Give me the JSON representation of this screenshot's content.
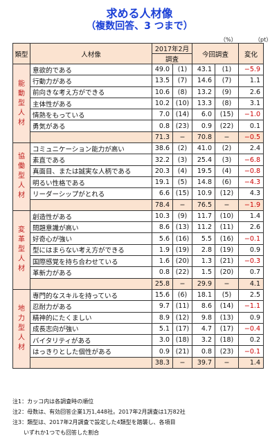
{
  "title": "求める人材像",
  "subtitle": "（複数回答、3 つまで）",
  "units": {
    "pct": "（%）",
    "pt": "（pt）"
  },
  "headers": {
    "type": "類型",
    "item": "人材像",
    "y2017_line1": "2017年2月",
    "y2017_line2": "調査",
    "current": "今回調査",
    "change": "変化"
  },
  "groups": [
    {
      "type": "能動型人材",
      "rows": [
        {
          "label": "意欲的である",
          "v17": "49.0",
          "r17": "(1)",
          "vn": "43.1",
          "rn": "(1)",
          "chg": "−5.9"
        },
        {
          "label": "行動力がある",
          "v17": "13.5",
          "r17": "(7)",
          "vn": "14.6",
          "rn": "(7)",
          "chg": "1.1"
        },
        {
          "label": "前向きな考え方ができる",
          "v17": "10.6",
          "r17": "(8)",
          "vn": "13.2",
          "rn": "(9)",
          "chg": "2.6"
        },
        {
          "label": "主体性がある",
          "v17": "10.2",
          "r17": "(10)",
          "vn": "13.3",
          "rn": "(8)",
          "chg": "3.1"
        },
        {
          "label": "情熱をもっている",
          "v17": "7.0",
          "r17": "(14)",
          "vn": "6.0",
          "rn": "(15)",
          "chg": "−1.0"
        },
        {
          "label": "勇気がある",
          "v17": "0.8",
          "r17": "(23)",
          "vn": "0.9",
          "rn": "(22)",
          "chg": "0.1"
        }
      ],
      "sub": {
        "v17": "71.3",
        "sep": "−",
        "vn": "70.8",
        "sep2": "−",
        "chg": "−0.5"
      }
    },
    {
      "type": "協働型人材",
      "rows": [
        {
          "label": "コミュニケーション能力が高い",
          "v17": "38.6",
          "r17": "(2)",
          "vn": "41.0",
          "rn": "(2)",
          "chg": "2.4"
        },
        {
          "label": "素直である",
          "v17": "32.2",
          "r17": "(3)",
          "vn": "25.4",
          "rn": "(3)",
          "chg": "−6.8"
        },
        {
          "label": "真面目、または誠実な人柄である",
          "v17": "20.3",
          "r17": "(4)",
          "vn": "19.5",
          "rn": "(4)",
          "chg": "−0.8"
        },
        {
          "label": "明るい性格である",
          "v17": "19.1",
          "r17": "(5)",
          "vn": "14.8",
          "rn": "(6)",
          "chg": "−4.3"
        },
        {
          "label": "リーダーシップがとれる",
          "v17": "6.6",
          "r17": "(15)",
          "vn": "10.9",
          "rn": "(12)",
          "chg": "4.3"
        }
      ],
      "sub": {
        "v17": "78.4",
        "sep": "−",
        "vn": "76.5",
        "sep2": "−",
        "chg": "−1.9"
      }
    },
    {
      "type": "変革型人材",
      "rows": [
        {
          "label": "創造性がある",
          "v17": "10.3",
          "r17": "(9)",
          "vn": "11.7",
          "rn": "(10)",
          "chg": "1.4"
        },
        {
          "label": "問題意識が高い",
          "v17": "8.6",
          "r17": "(13)",
          "vn": "11.2",
          "rn": "(11)",
          "chg": "2.6"
        },
        {
          "label": "好奇心が強い",
          "v17": "5.6",
          "r17": "(16)",
          "vn": "5.5",
          "rn": "(16)",
          "chg": "−0.1"
        },
        {
          "label": "型にはまらない考え方ができる",
          "v17": "1.9",
          "r17": "(19)",
          "vn": "2.8",
          "rn": "(19)",
          "chg": "0.9"
        },
        {
          "label": "国際感覚を持ち合わせている",
          "v17": "1.6",
          "r17": "(20)",
          "vn": "1.3",
          "rn": "(21)",
          "chg": "−0.3"
        },
        {
          "label": "革新力がある",
          "v17": "0.8",
          "r17": "(22)",
          "vn": "1.5",
          "rn": "(20)",
          "chg": "0.7"
        }
      ],
      "sub": {
        "v17": "25.8",
        "sep": "−",
        "vn": "29.9",
        "sep2": "−",
        "chg": "4.1"
      }
    },
    {
      "type": "地力型人材",
      "rows": [
        {
          "label": "専門的なスキルを持っている",
          "v17": "15.6",
          "r17": "(6)",
          "vn": "18.1",
          "rn": "(5)",
          "chg": "2.5"
        },
        {
          "label": "忍耐力がある",
          "v17": "9.7",
          "r17": "(11)",
          "vn": "8.6",
          "rn": "(14)",
          "chg": "−1.1"
        },
        {
          "label": "精神的にたくましい",
          "v17": "8.9",
          "r17": "(12)",
          "vn": "9.8",
          "rn": "(13)",
          "chg": "0.9"
        },
        {
          "label": "成長志向が強い",
          "v17": "5.1",
          "r17": "(17)",
          "vn": "4.7",
          "rn": "(17)",
          "chg": "−0.4"
        },
        {
          "label": "バイタリティがある",
          "v17": "3.0",
          "r17": "(18)",
          "vn": "3.2",
          "rn": "(18)",
          "chg": "0.2"
        },
        {
          "label": "はっきりとした個性がある",
          "v17": "0.9",
          "r17": "(21)",
          "vn": "0.8",
          "rn": "(23)",
          "chg": "−0.1"
        }
      ],
      "sub": {
        "v17": "38.3",
        "sep": "−",
        "vn": "39.7",
        "sep2": "−",
        "chg": "1.4"
      }
    }
  ],
  "notes": [
    "注1：カッコ内は各調査時の順位",
    "注2：母数は、有効回答企業1万1,448社。2017年2月調査は1万82社",
    "注3：類型は、2017年2月調査で設定した4類型を踏襲し、各項目",
    "　　いずれか1つでも回答した割合"
  ]
}
